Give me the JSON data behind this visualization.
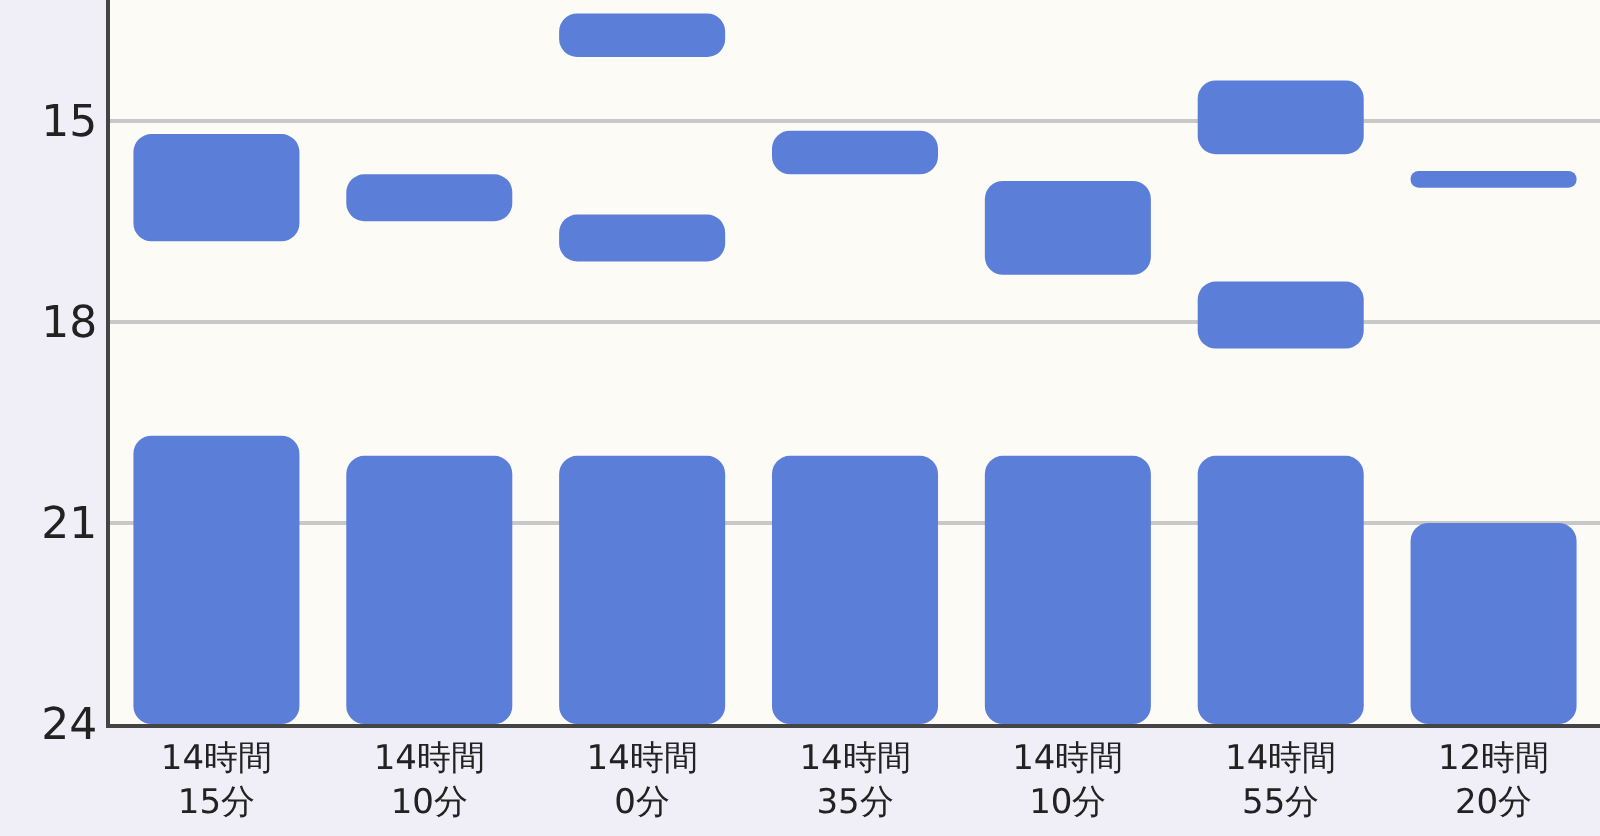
{
  "chart_data": {
    "type": "bar",
    "categories": [
      "14時間\n15分",
      "14時間\n10分",
      "14時間\n0分",
      "14時間\n35分",
      "14時間\n10分",
      "14時間\n55分",
      "12時間\n20分"
    ],
    "series": [
      {
        "color": "#5b7fd9",
        "base": [
          19.7,
          20,
          20,
          20,
          20,
          20,
          21
        ],
        "values": [
          4.3,
          4,
          4,
          4,
          4,
          4,
          3
        ]
      },
      {
        "color": "#5b7fd9",
        "base": [
          15.2,
          15.8,
          16.4,
          15.15,
          15.9,
          14.4,
          15.75
        ],
        "values": [
          1.6,
          0.7,
          0.7,
          0.65,
          1.4,
          1.1,
          0.25
        ]
      },
      {
        "color": "#5b7fd9",
        "base": [
          null,
          null,
          13.4,
          null,
          null,
          17.4,
          null
        ],
        "values": [
          null,
          null,
          0.65,
          null,
          null,
          1.0,
          null
        ]
      }
    ],
    "ylim": [
      24,
      13.2
    ],
    "yticks": [
      15,
      18,
      21,
      24
    ],
    "grid": "y"
  }
}
